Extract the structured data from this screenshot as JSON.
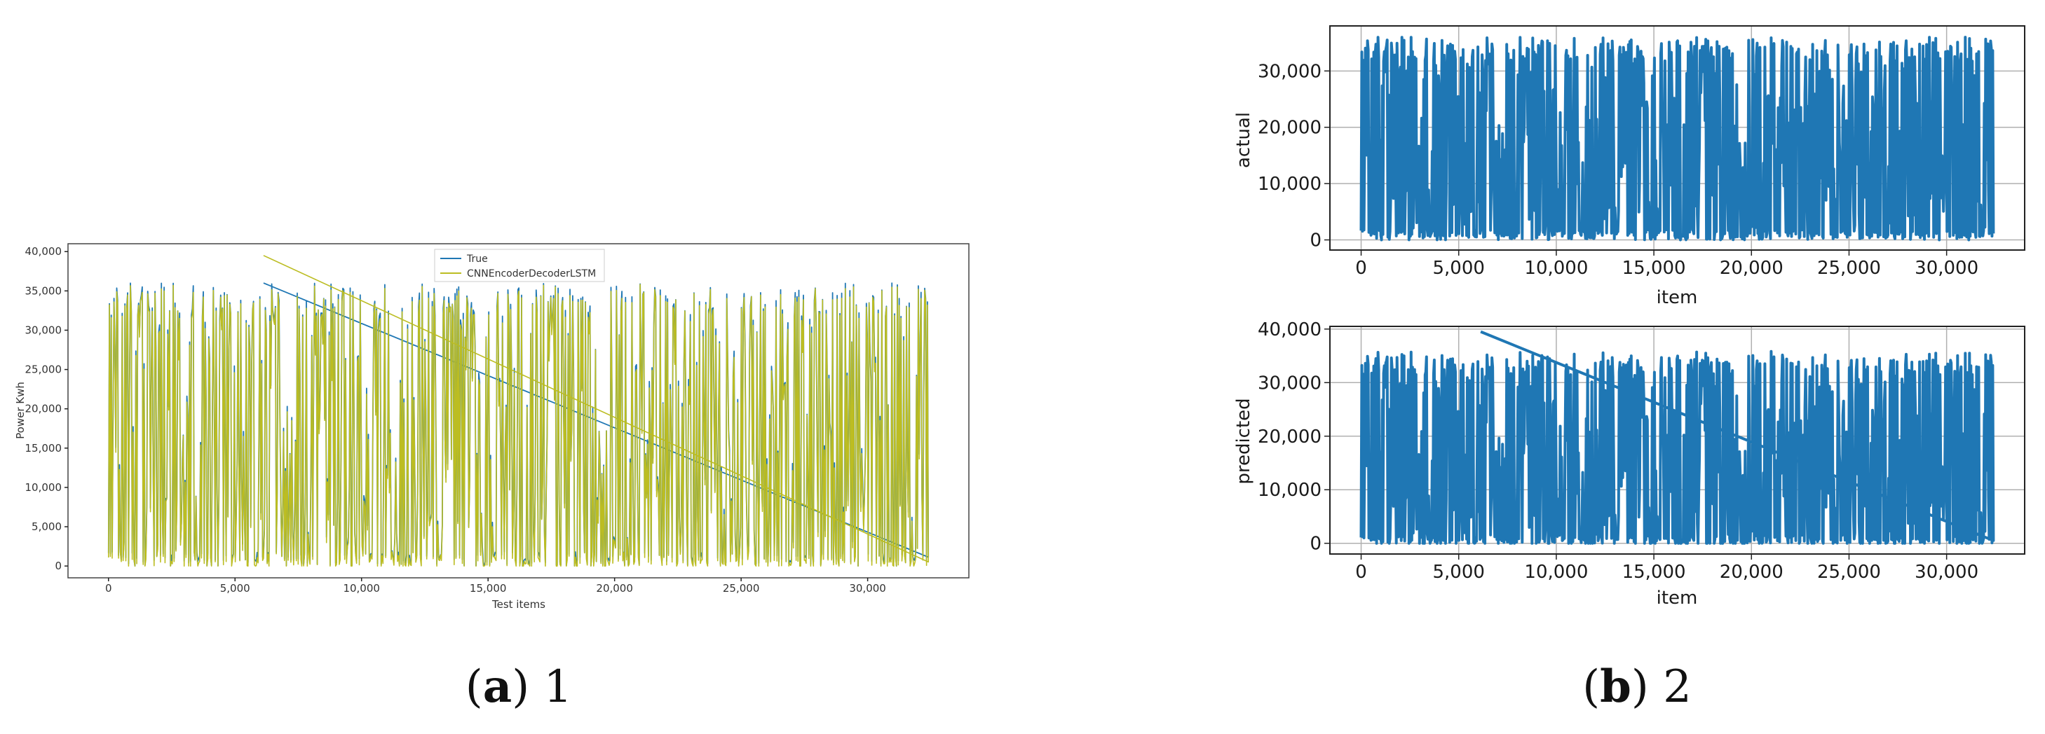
{
  "chart_data": [
    {
      "type": "line",
      "series": [
        {
          "name": "True",
          "color": "#1f77b4"
        },
        {
          "name": "CNNEncoderDecoderLSTM",
          "color": "#bcbd22"
        }
      ],
      "xlabel": "Test items",
      "ylabel": "Power Kwh",
      "xticks": [
        "0",
        "5,000",
        "10,000",
        "15,000",
        "20,000",
        "25,000",
        "30,000"
      ],
      "xtick_values": [
        0,
        5000,
        10000,
        15000,
        20000,
        25000,
        30000
      ],
      "yticks": [
        "0",
        "5,000",
        "10,000",
        "15,000",
        "20,000",
        "25,000",
        "30,000",
        "35,000",
        "40,000"
      ],
      "ytick_values": [
        0,
        5000,
        10000,
        15000,
        20000,
        25000,
        30000,
        35000,
        40000
      ],
      "xlim": [
        -1600,
        34000
      ],
      "ylim": [
        -1500,
        41000
      ],
      "n_points": 32400,
      "value_range": [
        0,
        36000
      ],
      "predicted_peak": 39500,
      "grid": false,
      "legend_position": "top-center",
      "caption": {
        "letter": "a",
        "text": "1"
      }
    },
    {
      "type": "line",
      "series": [
        {
          "name": "actual",
          "color": "#1f77b4"
        }
      ],
      "xlabel": "item",
      "ylabel": "actual",
      "xticks": [
        "0",
        "5,000",
        "10,000",
        "15,000",
        "20,000",
        "25,000",
        "30,000"
      ],
      "xtick_values": [
        0,
        5000,
        10000,
        15000,
        20000,
        25000,
        30000
      ],
      "yticks": [
        "0",
        "10,000",
        "20,000",
        "30,000"
      ],
      "ytick_values": [
        0,
        10000,
        20000,
        30000
      ],
      "xlim": [
        -1600,
        34000
      ],
      "ylim": [
        -1800,
        38000
      ],
      "grid": true
    },
    {
      "type": "line",
      "series": [
        {
          "name": "predicted",
          "color": "#1f77b4"
        }
      ],
      "xlabel": "item",
      "ylabel": "predicted",
      "xticks": [
        "0",
        "5,000",
        "10,000",
        "15,000",
        "20,000",
        "25,000",
        "30,000"
      ],
      "xtick_values": [
        0,
        5000,
        10000,
        15000,
        20000,
        25000,
        30000
      ],
      "yticks": [
        "0",
        "10,000",
        "20,000",
        "30,000",
        "40,000"
      ],
      "ytick_values": [
        0,
        10000,
        20000,
        30000,
        40000
      ],
      "xlim": [
        -1600,
        34000
      ],
      "ylim": [
        -2000,
        40500
      ],
      "grid": true,
      "caption": {
        "letter": "b",
        "text": "2"
      }
    }
  ]
}
